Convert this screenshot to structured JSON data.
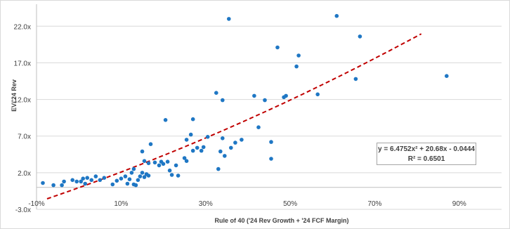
{
  "chart_data": {
    "type": "scatter",
    "title": "",
    "xlabel": "Rule of 40 ('24 Rev Growth + '24 FCF Margin)",
    "ylabel": "EV/'24 Rev",
    "xlim": [
      -10,
      100
    ],
    "ylim": [
      -3,
      25
    ],
    "x_ticks": [
      -10,
      10,
      30,
      50,
      70,
      90
    ],
    "x_tick_labels": [
      "-10%",
      "10%",
      "30%",
      "50%",
      "70%",
      "90%"
    ],
    "y_ticks": [
      -3,
      2,
      7,
      12,
      17,
      22
    ],
    "y_tick_labels": [
      "-3.0x",
      "2.0x",
      "7.0x",
      "12.0x",
      "17.0x",
      "22.0x"
    ],
    "grid": "horizontal",
    "marker_color": "#1f77c4",
    "trendline": {
      "type": "polynomial",
      "degree": 2,
      "coefficients": [
        6.4752,
        20.68,
        -0.0444
      ],
      "x_range": [
        -7.5,
        81
      ],
      "color": "#c00000",
      "style": "dashed",
      "equation_label": "y = 6.4752x² + 20.68x - 0.0444",
      "r_squared_label": "R² = 0.6501"
    },
    "points": [
      [
        -8.5,
        0.6
      ],
      [
        -6,
        0.3
      ],
      [
        -4,
        0.3
      ],
      [
        -3.5,
        0.8
      ],
      [
        -1.5,
        1.0
      ],
      [
        -0.5,
        0.8
      ],
      [
        0.5,
        0.8
      ],
      [
        1.0,
        1.2
      ],
      [
        1.5,
        0.5
      ],
      [
        2,
        1.3
      ],
      [
        3,
        1.0
      ],
      [
        4,
        1.5
      ],
      [
        5,
        1.0
      ],
      [
        6,
        1.3
      ],
      [
        8,
        0.4
      ],
      [
        9,
        0.9
      ],
      [
        10,
        1.2
      ],
      [
        11,
        1.5
      ],
      [
        11.5,
        0.5
      ],
      [
        12,
        1.1
      ],
      [
        12.5,
        2.0
      ],
      [
        13,
        0.4
      ],
      [
        13,
        2.5
      ],
      [
        13.5,
        0.3
      ],
      [
        14,
        1.0
      ],
      [
        14.5,
        1.5
      ],
      [
        15,
        2.0
      ],
      [
        15,
        4.9
      ],
      [
        15.5,
        1.4
      ],
      [
        15.5,
        3.6
      ],
      [
        16,
        1.8
      ],
      [
        16.5,
        3.3
      ],
      [
        17,
        5.9
      ],
      [
        16.5,
        1.6
      ],
      [
        18,
        3.4
      ],
      [
        19,
        3.0
      ],
      [
        19.5,
        3.5
      ],
      [
        20,
        3.2
      ],
      [
        20.5,
        9.2
      ],
      [
        21,
        3.5
      ],
      [
        21.5,
        2.3
      ],
      [
        22,
        1.7
      ],
      [
        23,
        3.0
      ],
      [
        23.5,
        1.6
      ],
      [
        25,
        4.0
      ],
      [
        25.5,
        6.5
      ],
      [
        25.5,
        3.6
      ],
      [
        26.5,
        7.2
      ],
      [
        27,
        9.3
      ],
      [
        27,
        5.0
      ],
      [
        28,
        5.4
      ],
      [
        29,
        5.0
      ],
      [
        29.5,
        5.5
      ],
      [
        30.5,
        6.9
      ],
      [
        32.5,
        12.9
      ],
      [
        33,
        2.5
      ],
      [
        33.5,
        4.9
      ],
      [
        34,
        11.9
      ],
      [
        34,
        6.7
      ],
      [
        34.5,
        4.3
      ],
      [
        35.5,
        23.0
      ],
      [
        36,
        5.4
      ],
      [
        37,
        6.1
      ],
      [
        38.5,
        6.5
      ],
      [
        41.5,
        12.5
      ],
      [
        42.5,
        8.2
      ],
      [
        44,
        11.9
      ],
      [
        45.5,
        3.9
      ],
      [
        45.5,
        6.2
      ],
      [
        47,
        19.1
      ],
      [
        48.5,
        12.3
      ],
      [
        49,
        12.5
      ],
      [
        51.5,
        16.5
      ],
      [
        52,
        18.0
      ],
      [
        56.5,
        12.7
      ],
      [
        61,
        23.4
      ],
      [
        65.5,
        14.8
      ],
      [
        66.5,
        20.6
      ],
      [
        87,
        15.2
      ]
    ]
  }
}
